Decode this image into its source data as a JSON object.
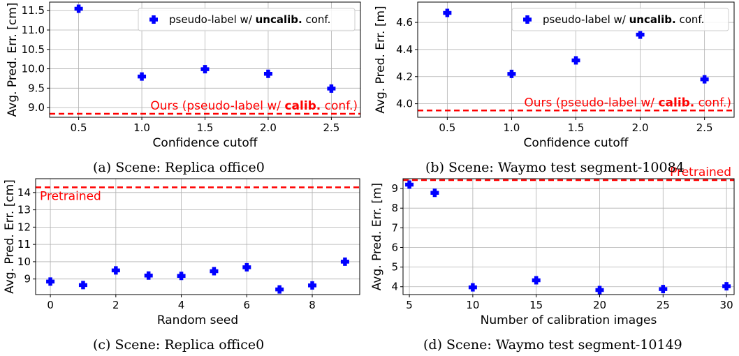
{
  "colors": {
    "marker": "#0000ff",
    "reference": "#ff0000",
    "grid": "#b0b0b0",
    "legend_border": "#cccccc"
  },
  "panels": [
    {
      "caption": "(a) Scene: Replica office0",
      "chart_data": {
        "type": "scatter",
        "xlabel": "Confidence cutoff",
        "ylabel": "Avg. Pred. Err. [cm]",
        "xlim": [
          0.27,
          2.73
        ],
        "ylim": [
          8.75,
          11.72
        ],
        "x_ticks": [
          0.5,
          1.0,
          1.5,
          2.0,
          2.5
        ],
        "x_tick_labels": [
          "0.5",
          "1.0",
          "1.5",
          "2.0",
          "2.5"
        ],
        "y_ticks": [
          9.0,
          9.5,
          10.0,
          10.5,
          11.0,
          11.5
        ],
        "y_tick_labels": [
          "9.0",
          "9.5",
          "10.0",
          "10.5",
          "11.0",
          "11.5"
        ],
        "grid": true,
        "series": [
          {
            "name_parts": [
              "pseudo-label w/ ",
              "uncalib.",
              " conf."
            ],
            "x": [
              0.5,
              1.0,
              1.5,
              2.0,
              2.5
            ],
            "y": [
              11.55,
              9.8,
              9.99,
              9.87,
              9.49
            ]
          }
        ],
        "legend": "top-right",
        "reference_line": {
          "y": 8.84,
          "label_parts": [
            "Ours (pseudo-label w/ ",
            "calib.",
            " conf.)"
          ],
          "label_position": "right"
        }
      }
    },
    {
      "caption": "(b) Scene: Waymo test segment-10084",
      "chart_data": {
        "type": "scatter",
        "xlabel": "Confidence cutoff",
        "ylabel": "Avg. Pred. Err. [m]",
        "xlim": [
          0.27,
          2.73
        ],
        "ylim": [
          3.9,
          4.75
        ],
        "x_ticks": [
          0.5,
          1.0,
          1.5,
          2.0,
          2.5
        ],
        "x_tick_labels": [
          "0.5",
          "1.0",
          "1.5",
          "2.0",
          "2.5"
        ],
        "y_ticks": [
          4.0,
          4.2,
          4.4,
          4.6
        ],
        "y_tick_labels": [
          "4.0",
          "4.2",
          "4.4",
          "4.6"
        ],
        "grid": true,
        "series": [
          {
            "name_parts": [
              "pseudo-label w/ ",
              "uncalib.",
              " conf."
            ],
            "x": [
              0.5,
              1.0,
              1.5,
              2.0,
              2.5
            ],
            "y": [
              4.67,
              4.22,
              4.32,
              4.51,
              4.18
            ]
          }
        ],
        "legend": "top-right",
        "reference_line": {
          "y": 3.95,
          "label_parts": [
            "Ours (pseudo-label w/ ",
            "calib.",
            " conf.)"
          ],
          "label_position": "right"
        }
      }
    },
    {
      "caption": "(c) Scene: Replica office0",
      "chart_data": {
        "type": "scatter",
        "xlabel": "Random seed",
        "ylabel": "Avg. Pred. Err. [cm]",
        "xlim": [
          -0.45,
          9.45
        ],
        "ylim": [
          8.1,
          14.8
        ],
        "x_ticks": [
          0,
          2,
          4,
          6,
          8
        ],
        "x_tick_labels": [
          "0",
          "2",
          "4",
          "6",
          "8"
        ],
        "y_ticks": [
          9,
          10,
          11,
          12,
          13,
          14
        ],
        "y_tick_labels": [
          "9",
          "10",
          "11",
          "12",
          "13",
          "14"
        ],
        "grid": true,
        "series": [
          {
            "x": [
              0,
              1,
              2,
              3,
              4,
              5,
              6,
              7,
              8,
              9
            ],
            "y": [
              8.85,
              8.65,
              9.5,
              9.2,
              9.18,
              9.45,
              9.68,
              8.4,
              8.63,
              10.0
            ]
          }
        ],
        "reference_line": {
          "y": 14.3,
          "label_parts": [
            "Pretrained"
          ],
          "label_position": "left"
        }
      }
    },
    {
      "caption": "(d) Scene: Waymo test segment-10149",
      "chart_data": {
        "type": "scatter",
        "xlabel": "Number of calibration images",
        "ylabel": "Avg. Pred. Err. [m]",
        "xlim": [
          4.5,
          30.6
        ],
        "ylim": [
          3.6,
          9.5
        ],
        "x_ticks": [
          5,
          10,
          15,
          20,
          25,
          30
        ],
        "x_tick_labels": [
          "5",
          "10",
          "15",
          "20",
          "25",
          "30"
        ],
        "y_ticks": [
          4,
          5,
          6,
          7,
          8,
          9
        ],
        "y_tick_labels": [
          "4",
          "5",
          "6",
          "7",
          "8",
          "9"
        ],
        "grid": true,
        "series": [
          {
            "x": [
              5,
              7,
              10,
              15,
              20,
              25,
              30
            ],
            "y": [
              9.2,
              8.78,
              3.97,
              4.33,
              3.83,
              3.88,
              4.02
            ]
          }
        ],
        "reference_line": {
          "y": 9.43,
          "label_parts": [
            "Pretrained"
          ],
          "label_position": "right"
        }
      }
    }
  ]
}
